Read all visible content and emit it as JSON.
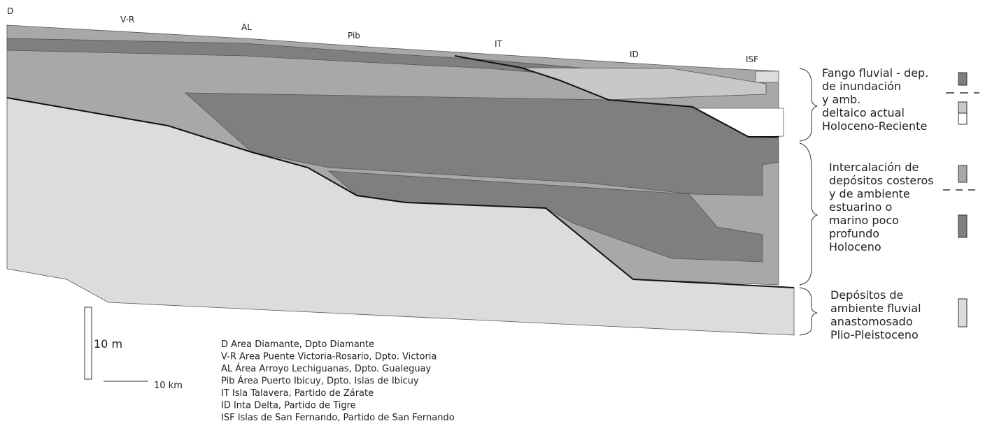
{
  "site_labels": [
    "D",
    "V-R",
    "AL",
    "Pib",
    "IT",
    "ID",
    "ISF"
  ],
  "legend": [
    {
      "lines": [
        "Fango fluvial - dep.",
        "de inundación",
        "y amb.",
        "deltaico actual",
        "Holoceno-Reciente"
      ]
    },
    {
      "lines": [
        "Intercalación de",
        "depósitos costeros",
        "y de ambiente",
        "estuarino o",
        "marino poco",
        "profundo",
        "Holoceno"
      ]
    },
    {
      "lines": [
        "Depósitos de",
        "ambiente fluvial",
        "anastomosado",
        "Plio-Pleistoceno"
      ]
    }
  ],
  "scale": {
    "vertical": "10 m",
    "horizontal": "10 km"
  },
  "key": [
    "D Area Diamante, Dpto Diamante",
    "V-R  Area Puente  Victoria-Rosario, Dpto. Victoria",
    "AL  Área  Arroyo Lechiguanas,  Dpto. Gualeguay",
    "Pib Área Puerto Ibicuy, Dpto. Islas de Ibicuy",
    "IT  Isla Talavera, Partido de Zárate",
    "ID Inta Delta, Partido de Tigre",
    "ISF Islas de San Fernando, Partido de San Fernando"
  ]
}
